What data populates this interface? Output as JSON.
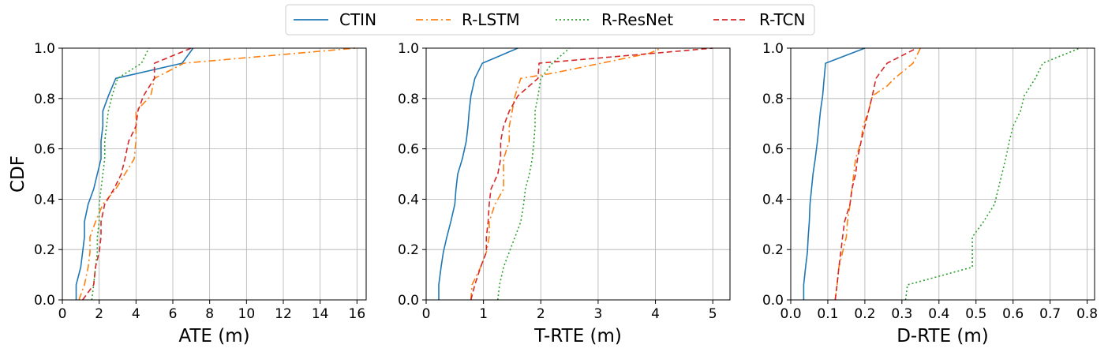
{
  "legend": {
    "items": [
      {
        "name": "CTIN",
        "color": "#1f77b4",
        "dash": "solid"
      },
      {
        "name": "R-LSTM",
        "color": "#ff7f0e",
        "dash": "dashdot"
      },
      {
        "name": "R-ResNet",
        "color": "#2ca02c",
        "dash": "dotted"
      },
      {
        "name": "R-TCN",
        "color": "#d62728",
        "dash": "dashed"
      }
    ],
    "placement": "top-center"
  },
  "chart_data": [
    {
      "type": "line",
      "title": "",
      "xlabel": "ATE (m)",
      "ylabel": "CDF",
      "xlim": [
        0,
        16.5
      ],
      "ylim": [
        0,
        1.0
      ],
      "xticks": [
        "0",
        "2",
        "4",
        "6",
        "8",
        "10",
        "12",
        "14",
        "16"
      ],
      "yticks": [
        "0.0",
        "0.2",
        "0.4",
        "0.6",
        "0.8",
        "1.0"
      ],
      "grid": true,
      "series": [
        {
          "name": "CTIN",
          "points": [
            [
              0.75,
              0
            ],
            [
              0.75,
              0.06
            ],
            [
              1.0,
              0.13
            ],
            [
              1.1,
              0.19
            ],
            [
              1.2,
              0.25
            ],
            [
              1.2,
              0.31
            ],
            [
              1.4,
              0.38
            ],
            [
              1.7,
              0.44
            ],
            [
              1.9,
              0.5
            ],
            [
              2.1,
              0.56
            ],
            [
              2.1,
              0.63
            ],
            [
              2.2,
              0.69
            ],
            [
              2.2,
              0.75
            ],
            [
              2.5,
              0.81
            ],
            [
              2.9,
              0.88
            ],
            [
              6.5,
              0.94
            ],
            [
              7.1,
              1.0
            ]
          ]
        },
        {
          "name": "R-LSTM",
          "points": [
            [
              0.9,
              0
            ],
            [
              1.2,
              0.06
            ],
            [
              1.4,
              0.13
            ],
            [
              1.5,
              0.19
            ],
            [
              1.5,
              0.25
            ],
            [
              1.8,
              0.31
            ],
            [
              2.2,
              0.38
            ],
            [
              2.9,
              0.44
            ],
            [
              3.4,
              0.5
            ],
            [
              3.9,
              0.56
            ],
            [
              4.0,
              0.63
            ],
            [
              4.0,
              0.69
            ],
            [
              4.0,
              0.75
            ],
            [
              4.8,
              0.81
            ],
            [
              5.0,
              0.88
            ],
            [
              6.6,
              0.94
            ],
            [
              15.9,
              1.0
            ]
          ]
        },
        {
          "name": "R-ResNet",
          "points": [
            [
              1.6,
              0
            ],
            [
              1.7,
              0.06
            ],
            [
              1.8,
              0.13
            ],
            [
              1.9,
              0.19
            ],
            [
              1.9,
              0.25
            ],
            [
              2.0,
              0.31
            ],
            [
              2.0,
              0.38
            ],
            [
              2.1,
              0.44
            ],
            [
              2.2,
              0.5
            ],
            [
              2.3,
              0.56
            ],
            [
              2.3,
              0.63
            ],
            [
              2.4,
              0.69
            ],
            [
              2.5,
              0.75
            ],
            [
              2.7,
              0.81
            ],
            [
              3.0,
              0.88
            ],
            [
              4.3,
              0.94
            ],
            [
              4.7,
              1.0
            ]
          ]
        },
        {
          "name": "R-TCN",
          "points": [
            [
              1.1,
              0
            ],
            [
              1.7,
              0.06
            ],
            [
              1.8,
              0.13
            ],
            [
              2.0,
              0.19
            ],
            [
              2.1,
              0.25
            ],
            [
              2.1,
              0.31
            ],
            [
              2.3,
              0.38
            ],
            [
              2.8,
              0.44
            ],
            [
              3.2,
              0.5
            ],
            [
              3.4,
              0.56
            ],
            [
              3.6,
              0.63
            ],
            [
              4.0,
              0.69
            ],
            [
              4.1,
              0.75
            ],
            [
              4.4,
              0.81
            ],
            [
              5.0,
              0.88
            ],
            [
              5.0,
              0.94
            ],
            [
              7.0,
              1.0
            ]
          ]
        }
      ]
    },
    {
      "type": "line",
      "title": "",
      "xlabel": "T-RTE (m)",
      "ylabel": "",
      "xlim": [
        0,
        5.3
      ],
      "ylim": [
        0,
        1.0
      ],
      "xticks": [
        "0",
        "1",
        "2",
        "3",
        "4",
        "5"
      ],
      "yticks": [
        "0.0",
        "0.2",
        "0.4",
        "0.6",
        "0.8",
        "1.0"
      ],
      "grid": true,
      "series": [
        {
          "name": "CTIN",
          "points": [
            [
              0.22,
              0
            ],
            [
              0.22,
              0.06
            ],
            [
              0.26,
              0.13
            ],
            [
              0.3,
              0.19
            ],
            [
              0.36,
              0.25
            ],
            [
              0.43,
              0.31
            ],
            [
              0.5,
              0.38
            ],
            [
              0.52,
              0.44
            ],
            [
              0.55,
              0.5
            ],
            [
              0.63,
              0.56
            ],
            [
              0.7,
              0.63
            ],
            [
              0.73,
              0.69
            ],
            [
              0.75,
              0.75
            ],
            [
              0.78,
              0.81
            ],
            [
              0.85,
              0.88
            ],
            [
              0.98,
              0.94
            ],
            [
              1.6,
              1.0
            ]
          ]
        },
        {
          "name": "R-LSTM",
          "points": [
            [
              0.78,
              0
            ],
            [
              0.8,
              0.06
            ],
            [
              0.95,
              0.13
            ],
            [
              1.05,
              0.19
            ],
            [
              1.1,
              0.25
            ],
            [
              1.1,
              0.31
            ],
            [
              1.2,
              0.38
            ],
            [
              1.35,
              0.44
            ],
            [
              1.35,
              0.5
            ],
            [
              1.35,
              0.56
            ],
            [
              1.45,
              0.63
            ],
            [
              1.45,
              0.69
            ],
            [
              1.5,
              0.75
            ],
            [
              1.55,
              0.81
            ],
            [
              1.65,
              0.88
            ],
            [
              2.2,
              0.9
            ],
            [
              3.9,
              0.98
            ],
            [
              4.1,
              1.0
            ]
          ]
        },
        {
          "name": "R-ResNet",
          "points": [
            [
              1.25,
              0
            ],
            [
              1.28,
              0.06
            ],
            [
              1.35,
              0.13
            ],
            [
              1.45,
              0.19
            ],
            [
              1.55,
              0.25
            ],
            [
              1.65,
              0.31
            ],
            [
              1.7,
              0.38
            ],
            [
              1.73,
              0.44
            ],
            [
              1.8,
              0.5
            ],
            [
              1.85,
              0.56
            ],
            [
              1.88,
              0.63
            ],
            [
              1.9,
              0.69
            ],
            [
              1.9,
              0.75
            ],
            [
              1.95,
              0.81
            ],
            [
              2.0,
              0.88
            ],
            [
              2.2,
              0.94
            ],
            [
              2.5,
              1.0
            ]
          ]
        },
        {
          "name": "R-TCN",
          "points": [
            [
              0.78,
              0
            ],
            [
              0.85,
              0.06
            ],
            [
              0.95,
              0.13
            ],
            [
              1.05,
              0.19
            ],
            [
              1.05,
              0.25
            ],
            [
              1.08,
              0.31
            ],
            [
              1.1,
              0.38
            ],
            [
              1.13,
              0.44
            ],
            [
              1.25,
              0.5
            ],
            [
              1.3,
              0.56
            ],
            [
              1.3,
              0.63
            ],
            [
              1.35,
              0.69
            ],
            [
              1.45,
              0.75
            ],
            [
              1.6,
              0.81
            ],
            [
              1.95,
              0.88
            ],
            [
              1.97,
              0.94
            ],
            [
              5.0,
              1.0
            ]
          ]
        }
      ]
    },
    {
      "type": "line",
      "title": "",
      "xlabel": "D-RTE (m)",
      "ylabel": "",
      "xlim": [
        0,
        0.82
      ],
      "ylim": [
        0,
        1.0
      ],
      "xticks": [
        "0.0",
        "0.1",
        "0.2",
        "0.3",
        "0.4",
        "0.5",
        "0.6",
        "0.7",
        "0.8"
      ],
      "yticks": [
        "0.0",
        "0.2",
        "0.4",
        "0.6",
        "0.8",
        "1.0"
      ],
      "grid": true,
      "series": [
        {
          "name": "CTIN",
          "points": [
            [
              0.035,
              0
            ],
            [
              0.035,
              0.06
            ],
            [
              0.04,
              0.13
            ],
            [
              0.045,
              0.19
            ],
            [
              0.047,
              0.25
            ],
            [
              0.05,
              0.31
            ],
            [
              0.052,
              0.38
            ],
            [
              0.056,
              0.44
            ],
            [
              0.06,
              0.5
            ],
            [
              0.066,
              0.56
            ],
            [
              0.072,
              0.63
            ],
            [
              0.076,
              0.69
            ],
            [
              0.08,
              0.75
            ],
            [
              0.086,
              0.81
            ],
            [
              0.09,
              0.88
            ],
            [
              0.094,
              0.94
            ],
            [
              0.2,
              1.0
            ]
          ]
        },
        {
          "name": "R-LSTM",
          "points": [
            [
              0.12,
              0
            ],
            [
              0.125,
              0.06
            ],
            [
              0.13,
              0.13
            ],
            [
              0.14,
              0.19
            ],
            [
              0.15,
              0.25
            ],
            [
              0.153,
              0.31
            ],
            [
              0.16,
              0.38
            ],
            [
              0.165,
              0.44
            ],
            [
              0.17,
              0.5
            ],
            [
              0.175,
              0.56
            ],
            [
              0.19,
              0.63
            ],
            [
              0.195,
              0.69
            ],
            [
              0.21,
              0.75
            ],
            [
              0.22,
              0.81
            ],
            [
              0.26,
              0.85
            ],
            [
              0.28,
              0.88
            ],
            [
              0.33,
              0.94
            ],
            [
              0.35,
              1.0
            ]
          ]
        },
        {
          "name": "R-ResNet",
          "points": [
            [
              0.31,
              0
            ],
            [
              0.315,
              0.06
            ],
            [
              0.49,
              0.13
            ],
            [
              0.49,
              0.19
            ],
            [
              0.49,
              0.25
            ],
            [
              0.52,
              0.31
            ],
            [
              0.55,
              0.38
            ],
            [
              0.56,
              0.44
            ],
            [
              0.57,
              0.5
            ],
            [
              0.58,
              0.56
            ],
            [
              0.59,
              0.63
            ],
            [
              0.6,
              0.69
            ],
            [
              0.62,
              0.75
            ],
            [
              0.63,
              0.81
            ],
            [
              0.66,
              0.88
            ],
            [
              0.68,
              0.94
            ],
            [
              0.78,
              1.0
            ]
          ]
        },
        {
          "name": "R-TCN",
          "points": [
            [
              0.12,
              0
            ],
            [
              0.125,
              0.06
            ],
            [
              0.13,
              0.13
            ],
            [
              0.135,
              0.19
            ],
            [
              0.14,
              0.25
            ],
            [
              0.145,
              0.31
            ],
            [
              0.16,
              0.38
            ],
            [
              0.165,
              0.44
            ],
            [
              0.175,
              0.5
            ],
            [
              0.18,
              0.56
            ],
            [
              0.19,
              0.63
            ],
            [
              0.2,
              0.69
            ],
            [
              0.21,
              0.75
            ],
            [
              0.22,
              0.81
            ],
            [
              0.23,
              0.88
            ],
            [
              0.26,
              0.94
            ],
            [
              0.34,
              1.0
            ]
          ]
        }
      ]
    }
  ]
}
